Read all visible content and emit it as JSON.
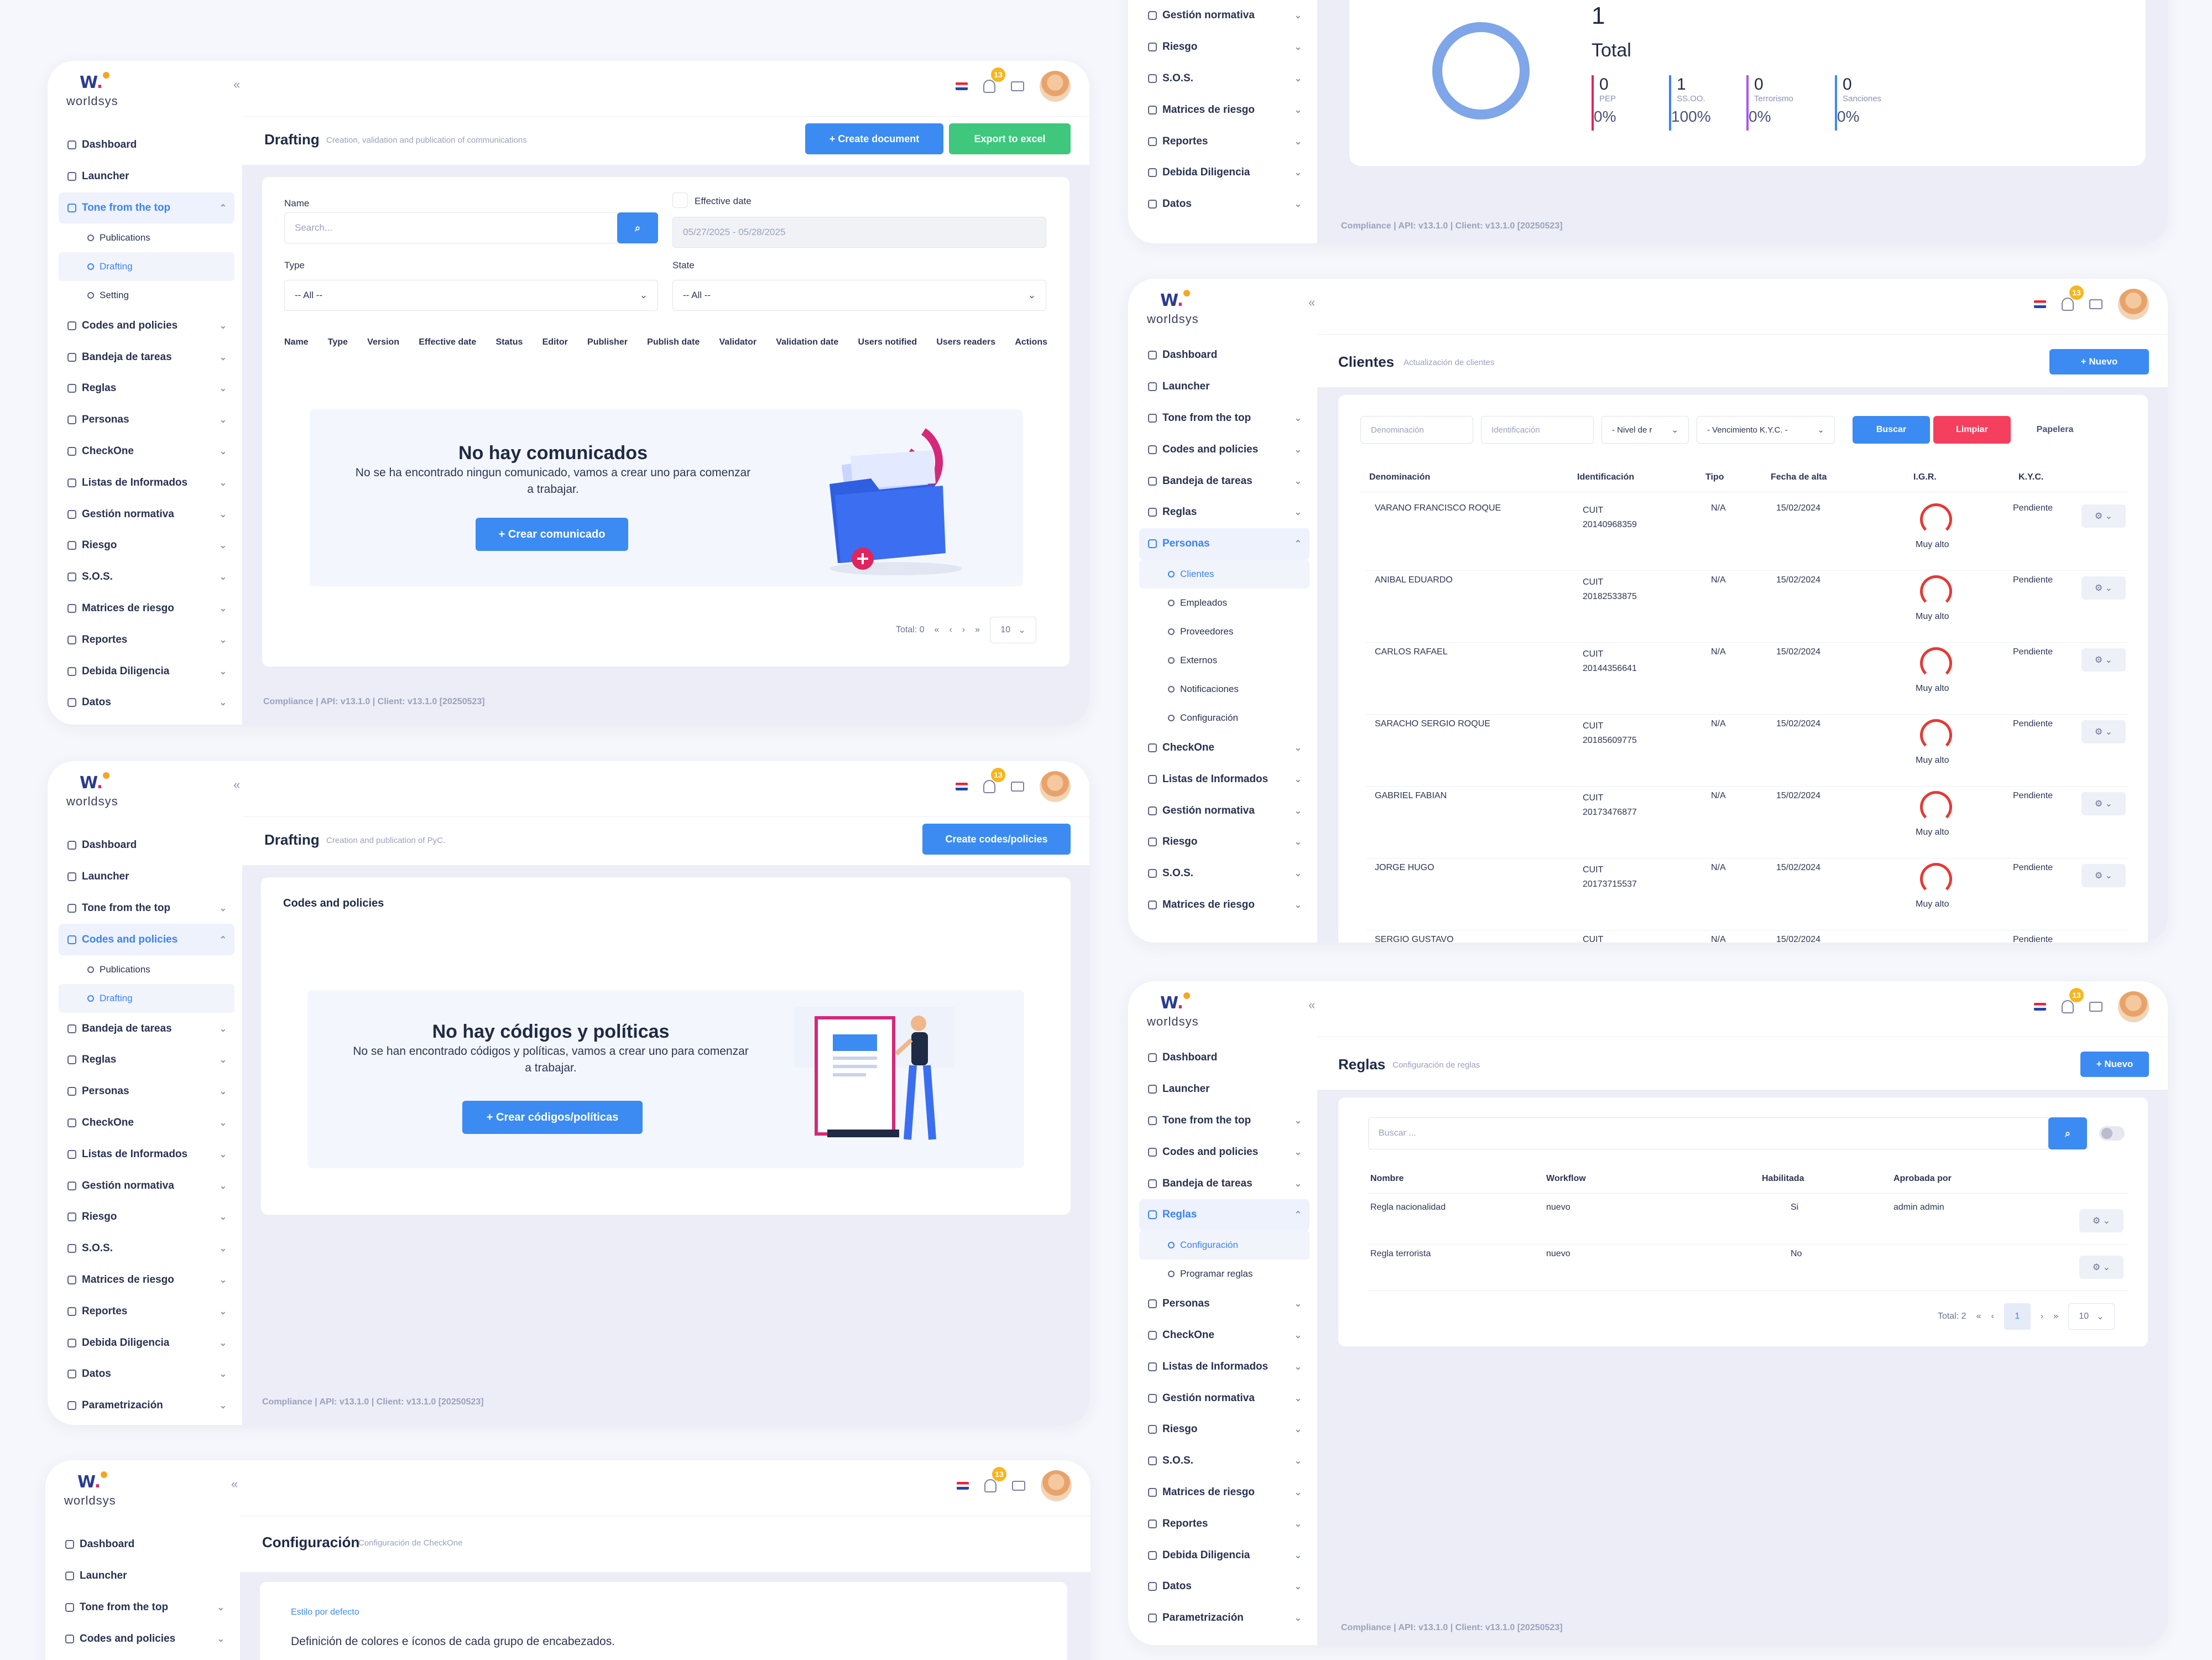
{
  "brand": {
    "name": "worldsys"
  },
  "nav": {
    "dashboard": "Dashboard",
    "launcher": "Launcher",
    "tone": "Tone from the top",
    "publications": "Publications",
    "drafting": "Drafting",
    "setting": "Setting",
    "codes": "Codes and policies",
    "bandeja": "Bandeja de tareas",
    "reglas": "Reglas",
    "personas": "Personas",
    "checkone": "CheckOne",
    "listas": "Listas de Informados",
    "gestion": "Gestión normativa",
    "riesgo": "Riesgo",
    "sos": "S.O.S.",
    "matrices": "Matrices de riesgo",
    "reportes": "Reportes",
    "debida": "Debida Diligencia",
    "datos": "Datos",
    "param": "Parametrización",
    "clientes": "Clientes",
    "empleados": "Empleados",
    "proveedores": "Proveedores",
    "externos": "Externos",
    "notificaciones": "Notificaciones",
    "configuracion": "Configuración",
    "programar": "Programar reglas"
  },
  "badge": "13",
  "footer": "Compliance | API: v13.1.0 | Client: v13.1.0 [20250523]",
  "w1": {
    "title": "Drafting",
    "subtitle": "Creation, validation and publication of communications",
    "create_btn": "+ Create document",
    "export_btn": "Export to excel",
    "name_label": "Name",
    "search_placeholder": "Search...",
    "effective_label": "Effective date",
    "date_range": "05/27/2025 - 05/28/2025",
    "type_label": "Type",
    "state_label": "State",
    "all": "-- All --",
    "columns": [
      "Name",
      "Type",
      "Version",
      "Effective date",
      "Status",
      "Editor",
      "Publisher",
      "Publish date",
      "Validator",
      "Validation date",
      "Users notified",
      "Users readers",
      "Actions"
    ],
    "empty_title": "No hay comunicados",
    "empty_text": "No se ha encontrado ningun comunicado, vamos a crear uno para comenzar a trabajar.",
    "empty_btn": "+ Crear comunicado",
    "total": "Total: 0",
    "page_size": "10"
  },
  "w2": {
    "title": "Drafting",
    "subtitle": "Creation and publication of PyC.",
    "create_btn": "Create codes/policies",
    "card_title": "Codes and policies",
    "empty_title": "No hay códigos y políticas",
    "empty_text": "No se han encontrado códigos y políticas, vamos a crear uno para comenzar a trabajar.",
    "empty_btn": "+ Crear códigos/políticas"
  },
  "w3": {
    "title": "Configuración",
    "subtitle": "Configuración de CheckOne",
    "section": "Estilo por defecto",
    "desc": "Definición de colores e íconos de cada grupo de encabezados."
  },
  "w4": {
    "total_num": "1",
    "total_label": "Total",
    "stats": [
      {
        "n": "0",
        "label": "PEP",
        "pct": "0%",
        "color": "#e0245e"
      },
      {
        "n": "1",
        "label": "SS.OO.",
        "pct": "100%",
        "color": "#3b82f6"
      },
      {
        "n": "0",
        "label": "Terrorismo",
        "pct": "0%",
        "color": "#a855f7"
      },
      {
        "n": "0",
        "label": "Sanciones",
        "pct": "0%",
        "color": "#3b8bf2"
      }
    ]
  },
  "w5": {
    "title": "Clientes",
    "subtitle": "Actualización de clientes",
    "new_btn": "+ Nuevo",
    "f_denominacion": "Denominación",
    "f_identificacion": "Identificación",
    "f_nivel": "- Nivel de r",
    "f_venc": "- Vencimiento K.Y.C. -",
    "buscar": "Buscar",
    "limpiar": "Limpiar",
    "papelera": "Papelera",
    "columns": [
      "Denominación",
      "Identificación",
      "Tipo",
      "Fecha de alta",
      "I.G.R.",
      "K.Y.C."
    ],
    "rows": [
      {
        "name": "VARANO FRANCISCO ROQUE",
        "id": "CUIT 20140968359",
        "tipo": "N/A",
        "fecha": "15/02/2024",
        "igr": "Muy alto",
        "kyc": "Pendiente"
      },
      {
        "name": "ANIBAL EDUARDO",
        "id": "CUIT 20182533875",
        "tipo": "N/A",
        "fecha": "15/02/2024",
        "igr": "Muy alto",
        "kyc": "Pendiente"
      },
      {
        "name": "CARLOS RAFAEL",
        "id": "CUIT 20144356641",
        "tipo": "N/A",
        "fecha": "15/02/2024",
        "igr": "Muy alto",
        "kyc": "Pendiente"
      },
      {
        "name": "SARACHO SERGIO ROQUE",
        "id": "CUIT 20185609775",
        "tipo": "N/A",
        "fecha": "15/02/2024",
        "igr": "Muy alto",
        "kyc": "Pendiente"
      },
      {
        "name": "GABRIEL FABIAN",
        "id": "CUIT 20173476877",
        "tipo": "N/A",
        "fecha": "15/02/2024",
        "igr": "Muy alto",
        "kyc": "Pendiente"
      },
      {
        "name": "JORGE HUGO",
        "id": "CUIT 20173715537",
        "tipo": "N/A",
        "fecha": "15/02/2024",
        "igr": "Muy alto",
        "kyc": "Pendiente"
      },
      {
        "name": "SERGIO GUSTAVO",
        "id": "CUIT",
        "tipo": "N/A",
        "fecha": "15/02/2024",
        "igr": "",
        "kyc": "Pendiente"
      }
    ]
  },
  "w6": {
    "title": "Reglas",
    "subtitle": "Configuración de reglas",
    "new_btn": "+ Nuevo",
    "search_placeholder": "Buscar ...",
    "columns": [
      "Nombre",
      "Workflow",
      "Habilitada",
      "Aprobada por"
    ],
    "rows": [
      {
        "name": "Regla nacionalidad",
        "wf": "nuevo",
        "hab": "Si",
        "aprob": "admin admin"
      },
      {
        "name": "Regla terrorista",
        "wf": "nuevo",
        "hab": "No",
        "aprob": ""
      }
    ],
    "total": "Total: 2",
    "page": "1",
    "page_size": "10"
  }
}
